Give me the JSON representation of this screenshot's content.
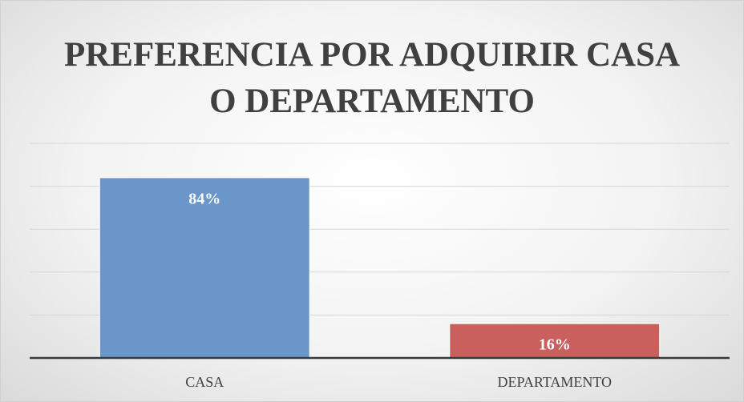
{
  "chart_data": {
    "type": "bar",
    "title": "PREFERENCIA POR ADQUIRIR CASA O DEPARTAMENTO",
    "categories": [
      "CASA",
      "DEPARTAMENTO"
    ],
    "values": [
      84,
      16
    ],
    "value_labels": [
      "84%",
      "16%"
    ],
    "colors": [
      "#6a96c9",
      "#c9605e"
    ],
    "ylim": [
      0,
      100
    ],
    "yticks": [
      0,
      20,
      40,
      60,
      80,
      100
    ],
    "grid": true
  }
}
